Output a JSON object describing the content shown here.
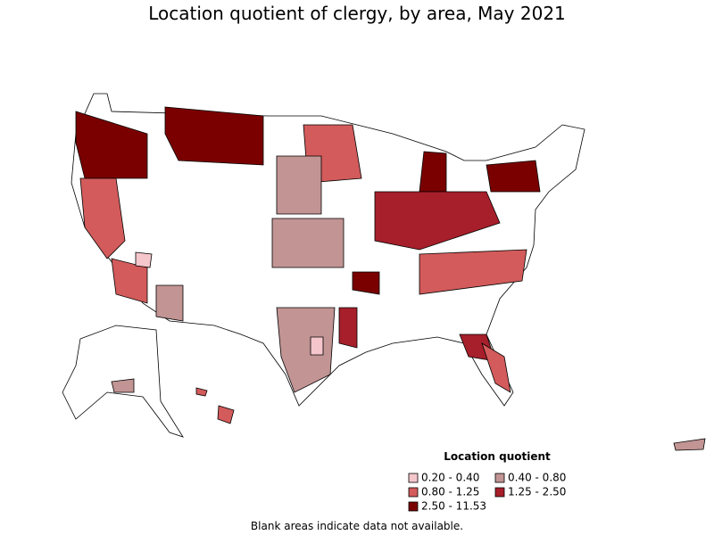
{
  "title": "Location quotient of clergy, by area, May 2021",
  "legend": {
    "title": "Location quotient",
    "items": [
      {
        "label": "0.20 - 0.40",
        "color": "#f5c6cc"
      },
      {
        "label": "0.40 - 0.80",
        "color": "#c29494"
      },
      {
        "label": "0.80 - 1.25",
        "color": "#d35b5b"
      },
      {
        "label": "1.25 - 2.50",
        "color": "#a61f2a"
      },
      {
        "label": "2.50 - 11.53",
        "color": "#7a0000"
      }
    ]
  },
  "note": "Blank areas indicate data not available."
}
